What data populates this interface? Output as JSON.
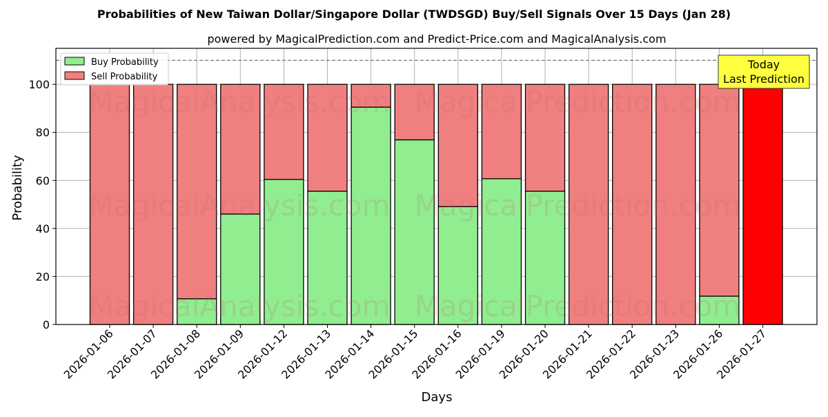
{
  "title": "Probabilities of New Taiwan Dollar/Singapore Dollar (TWDSGD) Buy/Sell Signals Over 15 Days (Jan 28)",
  "subtitle": "powered by MagicalPrediction.com and Predict-Price.com and MagicalAnalysis.com",
  "annotation": {
    "line1": "Today",
    "line2": "Last Prediction"
  },
  "watermarks": [
    "MagicalAnalysis.com",
    "MagicalPrediction.com"
  ],
  "colors": {
    "buy": "#90ee90",
    "sell": "#f08080",
    "today_sell": "#ff0000",
    "annotation_bg": "#ffff40"
  },
  "chart_data": {
    "type": "bar",
    "stacked": true,
    "title": "Probabilities of New Taiwan Dollar/Singapore Dollar (TWDSGD) Buy/Sell Signals Over 15 Days (Jan 28)",
    "subtitle": "powered by MagicalPrediction.com and Predict-Price.com and MagicalAnalysis.com",
    "xlabel": "Days",
    "ylabel": "Probability",
    "ylim": [
      0,
      115
    ],
    "yticks": [
      0,
      20,
      40,
      60,
      80,
      100
    ],
    "grid": true,
    "legend_position": "upper left",
    "reference_line": {
      "y": 110,
      "style": "dashed"
    },
    "categories": [
      "2026-01-06",
      "2026-01-07",
      "2026-01-08",
      "2026-01-09",
      "2026-01-12",
      "2026-01-13",
      "2026-01-14",
      "2026-01-15",
      "2026-01-16",
      "2026-01-19",
      "2026-01-20",
      "2026-01-21",
      "2026-01-22",
      "2026-01-23",
      "2026-01-26",
      "2026-01-27"
    ],
    "series": [
      {
        "name": "Buy Probability",
        "values": [
          0,
          0,
          10.7,
          46.0,
          60.4,
          55.5,
          90.5,
          76.9,
          49.1,
          60.7,
          55.5,
          0,
          0,
          0,
          11.8,
          0
        ]
      },
      {
        "name": "Sell Probability",
        "values": [
          100,
          100,
          89.3,
          54.0,
          39.6,
          44.5,
          9.5,
          23.1,
          50.9,
          39.3,
          44.5,
          100,
          100,
          100,
          88.2,
          100
        ]
      }
    ]
  }
}
